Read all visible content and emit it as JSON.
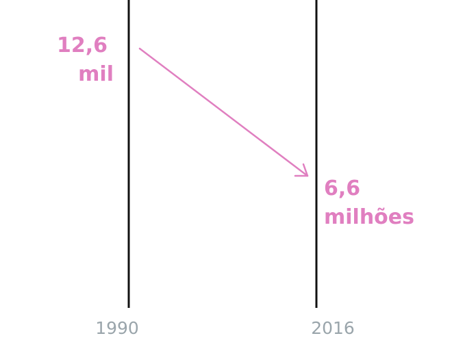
{
  "columns": [
    {
      "year": "1990",
      "value": "12,6",
      "unit": "mil"
    },
    {
      "year": "2016",
      "value": "6,6",
      "unit": "milhões"
    }
  ]
}
